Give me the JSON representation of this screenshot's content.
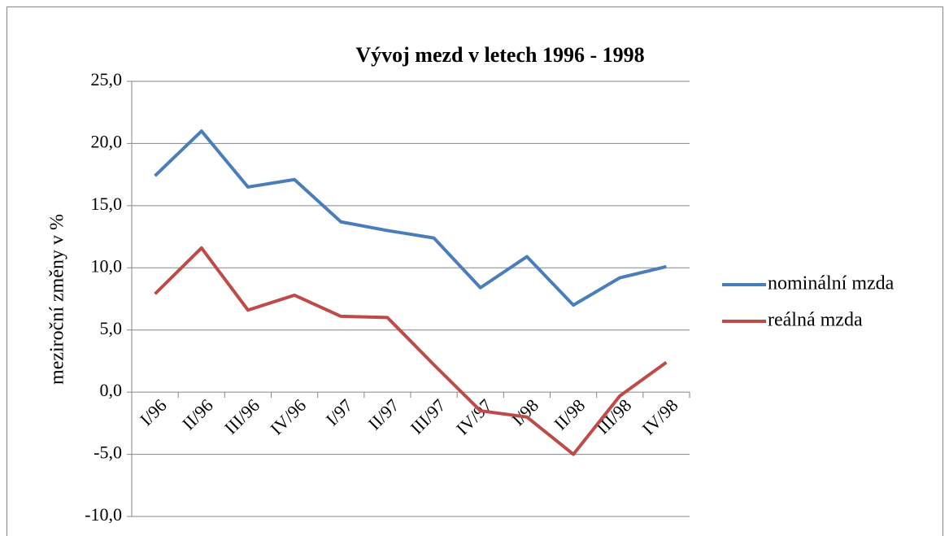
{
  "chart_data": {
    "type": "line",
    "title": "Vývoj mezd v letech 1996 - 1998",
    "ylabel": "meziroční změny v %",
    "categories": [
      "I/96",
      "II/96",
      "III/96",
      "IV/96",
      "I/97",
      "II/97",
      "III/97",
      "IV/97",
      "I/98",
      "II/98",
      "III/98",
      "IV/98"
    ],
    "series": [
      {
        "name": "nominální mzda",
        "color": "#4a7ebb",
        "values": [
          17.4,
          21.0,
          16.5,
          17.1,
          13.7,
          13.0,
          12.4,
          8.4,
          10.9,
          7.0,
          9.2,
          10.1
        ]
      },
      {
        "name": "reálná mzda",
        "color": "#be4b48",
        "values": [
          7.9,
          11.6,
          6.6,
          7.8,
          6.1,
          6.0,
          2.2,
          -1.5,
          -2.0,
          -5.0,
          -0.3,
          2.4
        ]
      }
    ],
    "ylim": [
      -10,
      25
    ],
    "yticks": [
      {
        "value": -10,
        "label": "-10,0"
      },
      {
        "value": -5,
        "label": "-5,0"
      },
      {
        "value": 0,
        "label": "0,0"
      },
      {
        "value": 5,
        "label": "5,0"
      },
      {
        "value": 10,
        "label": "10,0"
      },
      {
        "value": 15,
        "label": "15,0"
      },
      {
        "value": 20,
        "label": "20,0"
      },
      {
        "value": 25,
        "label": "25,0"
      }
    ],
    "grid": true,
    "legend": "right"
  }
}
